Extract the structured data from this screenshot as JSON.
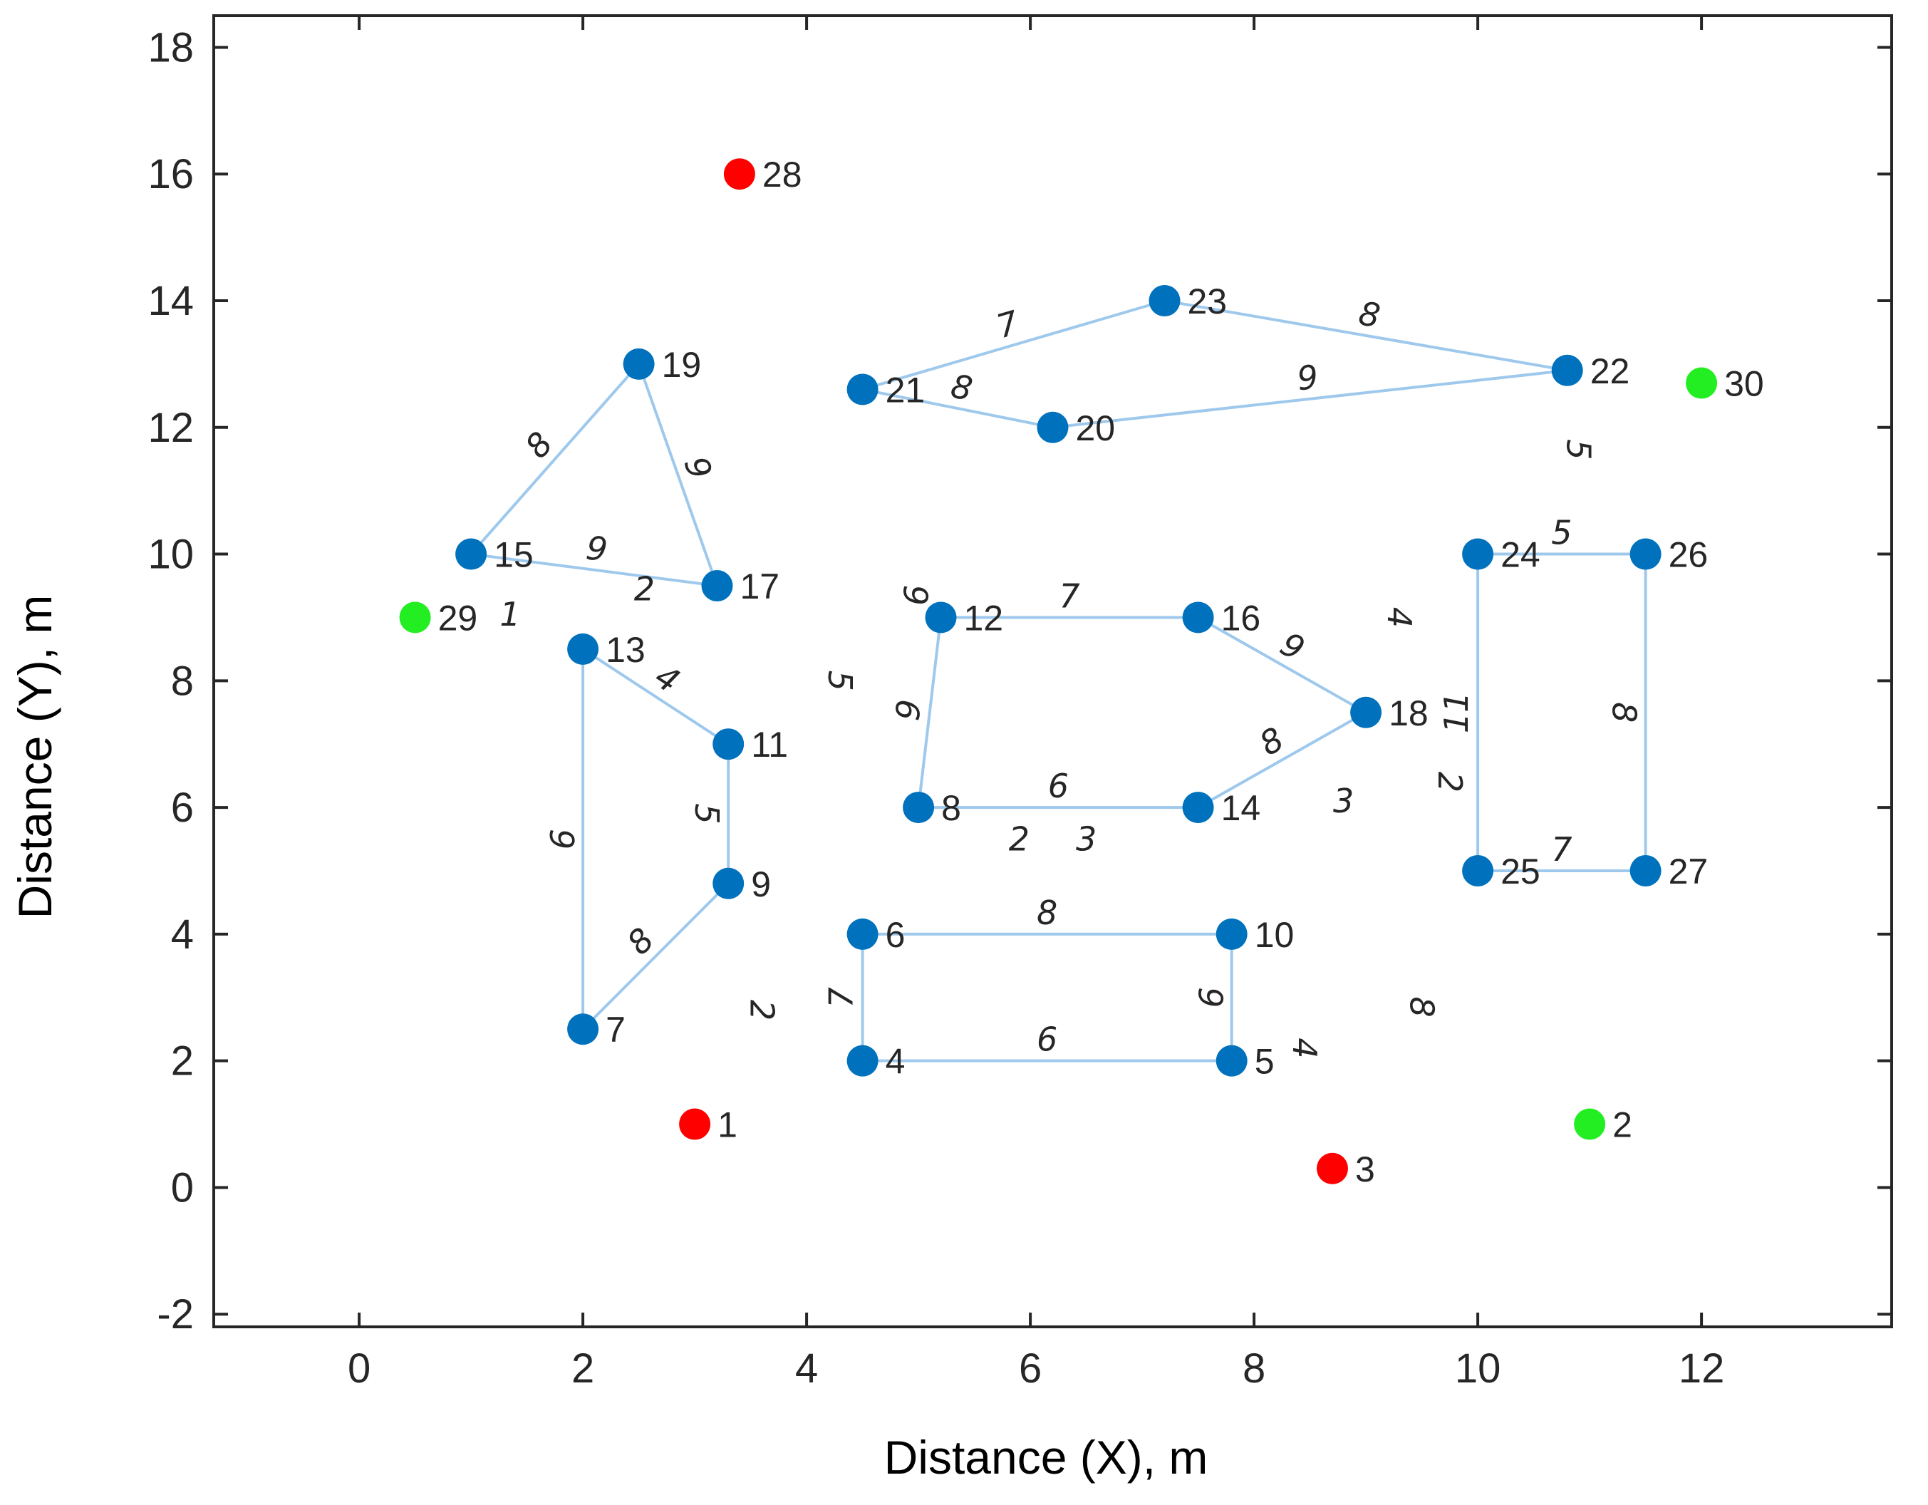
{
  "chart_data": {
    "type": "scatter",
    "title": "",
    "xlabel": "Distance (X), m",
    "ylabel": "Distance (Y), m",
    "xlim": [
      -1.3,
      13.7
    ],
    "ylim": [
      -2.2,
      18.5
    ],
    "xticks": [
      0,
      2,
      4,
      6,
      8,
      10,
      12
    ],
    "yticks": [
      -2,
      0,
      2,
      4,
      6,
      8,
      10,
      12,
      14,
      16,
      18
    ],
    "grid": false,
    "colors": {
      "node": "#0072bd",
      "edge": "#9ec9ec",
      "red_node": "#ff0000",
      "green_node": "#22ee22"
    },
    "nodes": [
      {
        "id": "1",
        "x": 3.0,
        "y": 1.0,
        "color": "red"
      },
      {
        "id": "2",
        "x": 11.0,
        "y": 1.0,
        "color": "green"
      },
      {
        "id": "3",
        "x": 8.7,
        "y": 0.3,
        "color": "red"
      },
      {
        "id": "4",
        "x": 4.5,
        "y": 2.0,
        "color": "blue"
      },
      {
        "id": "5",
        "x": 7.8,
        "y": 2.0,
        "color": "blue"
      },
      {
        "id": "6",
        "x": 4.5,
        "y": 4.0,
        "color": "blue"
      },
      {
        "id": "7",
        "x": 2.0,
        "y": 2.5,
        "color": "blue"
      },
      {
        "id": "8",
        "x": 5.0,
        "y": 6.0,
        "color": "blue"
      },
      {
        "id": "9",
        "x": 3.3,
        "y": 4.8,
        "color": "blue"
      },
      {
        "id": "10",
        "x": 7.8,
        "y": 4.0,
        "color": "blue"
      },
      {
        "id": "11",
        "x": 3.3,
        "y": 7.0,
        "color": "blue"
      },
      {
        "id": "12",
        "x": 5.2,
        "y": 9.0,
        "color": "blue"
      },
      {
        "id": "13",
        "x": 2.0,
        "y": 8.5,
        "color": "blue"
      },
      {
        "id": "14",
        "x": 7.5,
        "y": 6.0,
        "color": "blue"
      },
      {
        "id": "15",
        "x": 1.0,
        "y": 10.0,
        "color": "blue"
      },
      {
        "id": "16",
        "x": 7.5,
        "y": 9.0,
        "color": "blue"
      },
      {
        "id": "17",
        "x": 3.2,
        "y": 9.5,
        "color": "blue"
      },
      {
        "id": "18",
        "x": 9.0,
        "y": 7.5,
        "color": "blue"
      },
      {
        "id": "19",
        "x": 2.5,
        "y": 13.0,
        "color": "blue"
      },
      {
        "id": "20",
        "x": 6.2,
        "y": 12.0,
        "color": "blue"
      },
      {
        "id": "21",
        "x": 4.5,
        "y": 12.6,
        "color": "blue"
      },
      {
        "id": "22",
        "x": 10.8,
        "y": 12.9,
        "color": "blue"
      },
      {
        "id": "23",
        "x": 7.2,
        "y": 14.0,
        "color": "blue"
      },
      {
        "id": "24",
        "x": 10.0,
        "y": 10.0,
        "color": "blue"
      },
      {
        "id": "25",
        "x": 10.0,
        "y": 5.0,
        "color": "blue"
      },
      {
        "id": "26",
        "x": 11.5,
        "y": 10.0,
        "color": "blue"
      },
      {
        "id": "27",
        "x": 11.5,
        "y": 5.0,
        "color": "blue"
      },
      {
        "id": "28",
        "x": 3.4,
        "y": 16.0,
        "color": "red"
      },
      {
        "id": "29",
        "x": 0.5,
        "y": 9.0,
        "color": "green"
      },
      {
        "id": "30",
        "x": 12.0,
        "y": 12.7,
        "color": "green"
      }
    ],
    "edges": [
      {
        "from": "15",
        "to": "19",
        "weight": "8"
      },
      {
        "from": "19",
        "to": "17",
        "weight": "9"
      },
      {
        "from": "15",
        "to": "17",
        "weight": "9"
      },
      {
        "from": "13",
        "to": "11",
        "weight": "4"
      },
      {
        "from": "11",
        "to": "9",
        "weight": "5"
      },
      {
        "from": "9",
        "to": "7",
        "weight": "8"
      },
      {
        "from": "13",
        "to": "7",
        "weight": "9"
      },
      {
        "from": "21",
        "to": "23",
        "weight": "7"
      },
      {
        "from": "23",
        "to": "22",
        "weight": "8"
      },
      {
        "from": "21",
        "to": "20",
        "weight": "8"
      },
      {
        "from": "20",
        "to": "22",
        "weight": "9"
      },
      {
        "from": "12",
        "to": "16",
        "weight": "7"
      },
      {
        "from": "16",
        "to": "18",
        "weight": "9"
      },
      {
        "from": "18",
        "to": "14",
        "weight": "8"
      },
      {
        "from": "14",
        "to": "8",
        "weight": "6"
      },
      {
        "from": "8",
        "to": "12",
        "weight": "9"
      },
      {
        "from": "6",
        "to": "10",
        "weight": "8"
      },
      {
        "from": "10",
        "to": "5",
        "weight": "9"
      },
      {
        "from": "5",
        "to": "4",
        "weight": "6"
      },
      {
        "from": "4",
        "to": "6",
        "weight": "7"
      },
      {
        "from": "24",
        "to": "26",
        "weight": "5"
      },
      {
        "from": "26",
        "to": "27",
        "weight": "8"
      },
      {
        "from": "27",
        "to": "25",
        "weight": "7"
      },
      {
        "from": "25",
        "to": "24",
        "weight": "11"
      }
    ],
    "floating_labels": [
      {
        "text": "1",
        "x": 1.35,
        "y": 9.05,
        "rotate": 0
      },
      {
        "text": "2",
        "x": 2.55,
        "y": 9.45,
        "rotate": 0
      },
      {
        "text": "5",
        "x": 4.3,
        "y": 8.0,
        "rotate": 90
      },
      {
        "text": "9",
        "x": 4.97,
        "y": 9.35,
        "rotate": 90
      },
      {
        "text": "2",
        "x": 3.6,
        "y": 2.8,
        "rotate": 90
      },
      {
        "text": "2",
        "x": 5.9,
        "y": 5.5,
        "rotate": 0
      },
      {
        "text": "3",
        "x": 6.5,
        "y": 5.5,
        "rotate": 0
      },
      {
        "text": "3",
        "x": 8.8,
        "y": 6.1,
        "rotate": 0
      },
      {
        "text": "4",
        "x": 8.45,
        "y": 2.2,
        "rotate": 90
      },
      {
        "text": "8",
        "x": 9.5,
        "y": 2.85,
        "rotate": 90
      },
      {
        "text": "4",
        "x": 9.3,
        "y": 9.0,
        "rotate": 90
      },
      {
        "text": "2",
        "x": 9.75,
        "y": 6.4,
        "rotate": 90
      },
      {
        "text": "5",
        "x": 10.9,
        "y": 11.65,
        "rotate": 90
      }
    ]
  }
}
